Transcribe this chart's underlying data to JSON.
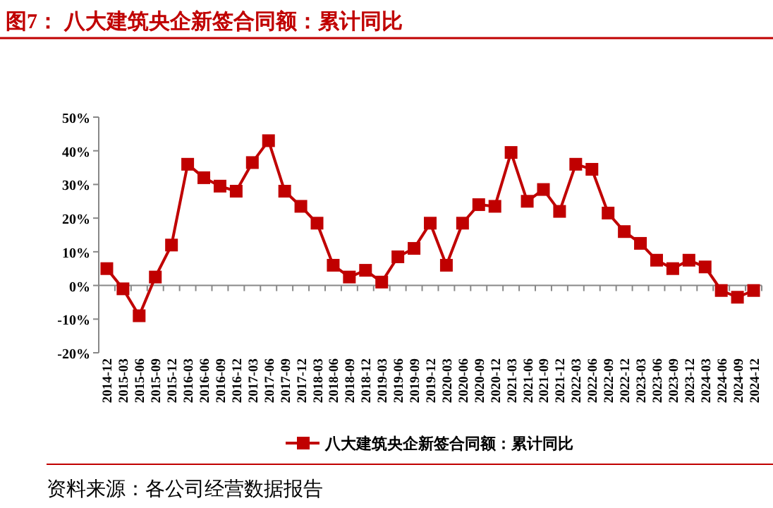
{
  "chart_data": {
    "type": "line",
    "title": "图7：  八大建筑央企新签合同额：累计同比",
    "categories": [
      "2014-12",
      "2015-03",
      "2015-06",
      "2015-09",
      "2015-12",
      "2016-03",
      "2016-06",
      "2016-09",
      "2016-12",
      "2017-03",
      "2017-06",
      "2017-09",
      "2017-12",
      "2018-03",
      "2018-06",
      "2018-09",
      "2018-12",
      "2019-03",
      "2019-06",
      "2019-09",
      "2019-12",
      "2020-03",
      "2020-06",
      "2020-09",
      "2020-12",
      "2021-03",
      "2021-06",
      "2021-09",
      "2021-12",
      "2022-03",
      "2022-06",
      "2022-09",
      "2022-12",
      "2023-03",
      "2023-06",
      "2023-09",
      "2023-12",
      "2024-03",
      "2024-06",
      "2024-09",
      "2024-12"
    ],
    "series": [
      {
        "name": "八大建筑央企新签合同额：累计同比",
        "color": "#c00000",
        "values": [
          5,
          -1,
          -9,
          2.5,
          12,
          36,
          32,
          29.5,
          28,
          36.5,
          43,
          28,
          23.5,
          18.5,
          6,
          2.5,
          4.5,
          1,
          8.5,
          11,
          18.5,
          6,
          18.5,
          24,
          23.5,
          39.5,
          25,
          28.5,
          22,
          36,
          34.5,
          21.5,
          16,
          12.5,
          7.5,
          5,
          7.5,
          5.5,
          -1.5,
          -3.5,
          -1.5
        ]
      }
    ],
    "ylim": [
      -20,
      50
    ],
    "yticks": [
      {
        "value": -20,
        "label": "-20%"
      },
      {
        "value": -10,
        "label": "-10%"
      },
      {
        "value": 0,
        "label": "0%"
      },
      {
        "value": 10,
        "label": "10%"
      },
      {
        "value": 20,
        "label": "20%"
      },
      {
        "value": 30,
        "label": "30%"
      },
      {
        "value": 40,
        "label": "40%"
      },
      {
        "value": 50,
        "label": "50%"
      }
    ],
    "marker": "square",
    "legend": "bottom",
    "annotations": [
      "资料来源：各公司经营数据报告"
    ]
  }
}
